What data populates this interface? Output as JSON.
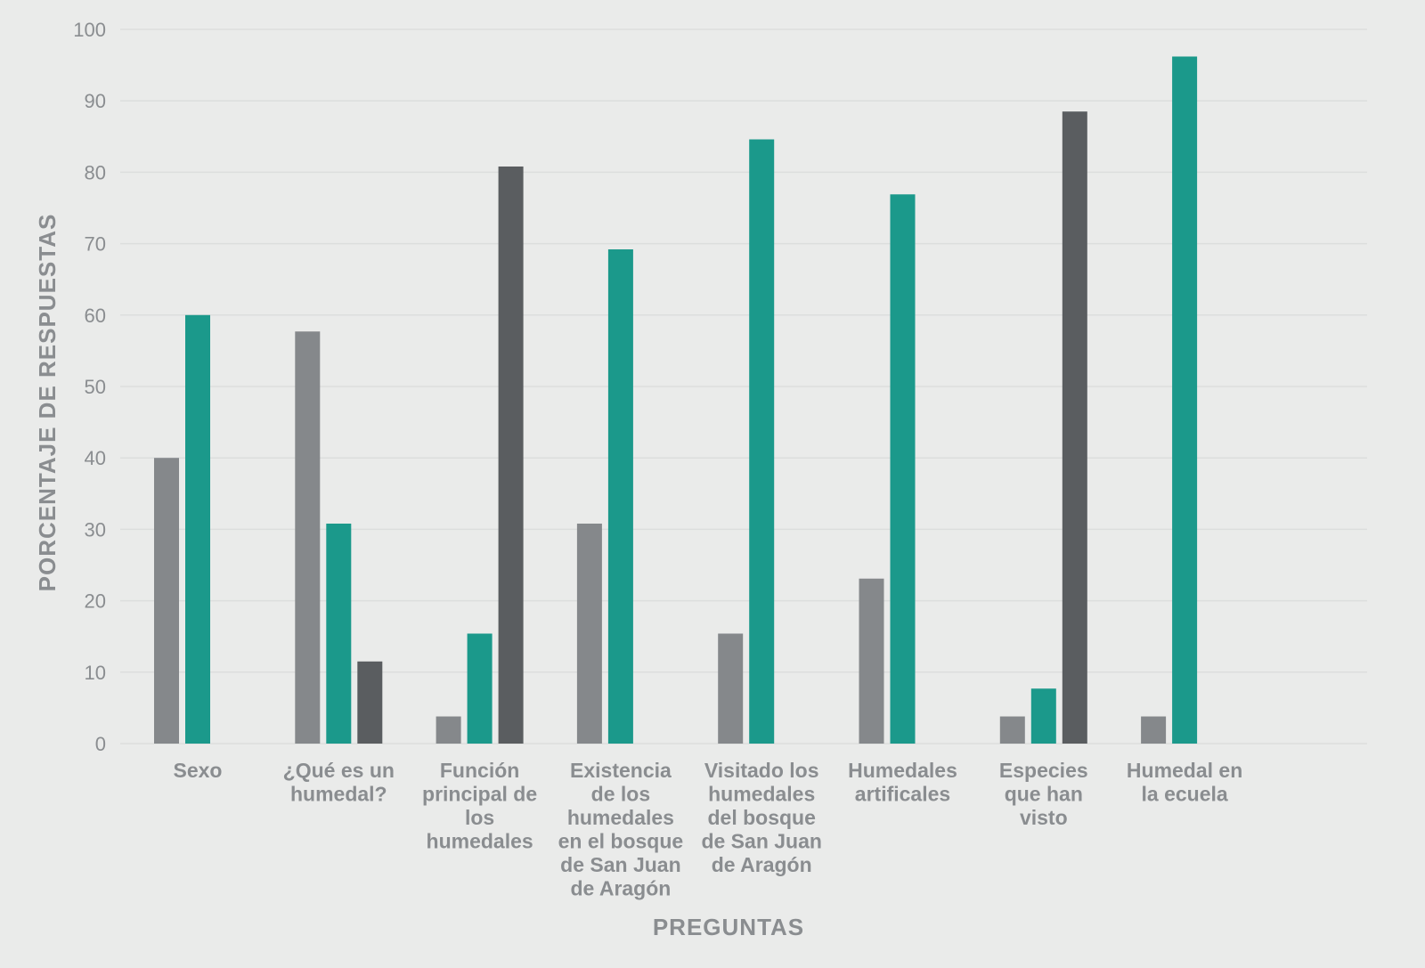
{
  "chart_data": {
    "type": "bar",
    "title": "",
    "xlabel": "PREGUNTAS",
    "ylabel": "PORCENTAJE DE RESPUESTAS",
    "ylim": [
      0,
      100
    ],
    "yticks": [
      0,
      10,
      20,
      30,
      40,
      50,
      60,
      70,
      80,
      90,
      100
    ],
    "grid": true,
    "legend": "none",
    "categories": [
      [
        "Sexo"
      ],
      [
        "¿Qué es un",
        "humedal?"
      ],
      [
        "Función",
        "principal de",
        "los",
        "humedales"
      ],
      [
        "Existencia",
        "de los",
        "humedales",
        "en el bosque",
        "de San Juan",
        "de Aragón"
      ],
      [
        "Visitado los",
        "humedales",
        "del bosque",
        "de San Juan",
        "de Aragón"
      ],
      [
        "Humedales",
        "artificales"
      ],
      [
        "Especies",
        "que han",
        "visto"
      ],
      [
        "Humedal en",
        "la ecuela"
      ]
    ],
    "series": [
      {
        "color": "#85888b",
        "values": [
          40,
          57.7,
          3.8,
          30.8,
          15.4,
          23.1,
          3.8,
          3.8
        ]
      },
      {
        "color": "#1b998b",
        "values": [
          60,
          30.8,
          15.4,
          69.2,
          84.6,
          76.9,
          7.7,
          96.2
        ]
      },
      {
        "color": "#5a5d60",
        "values": [
          null,
          11.5,
          80.8,
          null,
          null,
          null,
          88.5,
          null
        ]
      }
    ]
  }
}
